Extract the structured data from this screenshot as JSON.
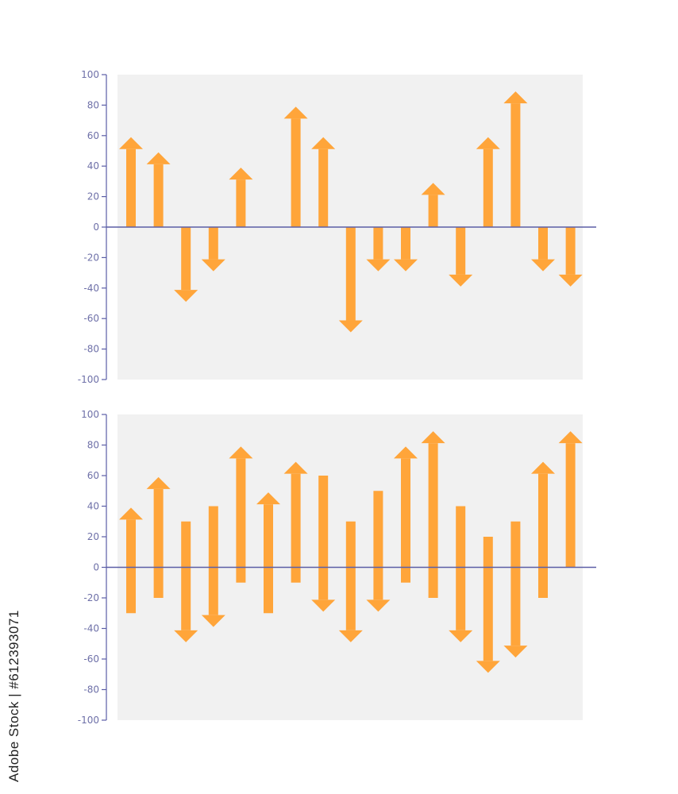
{
  "colors": {
    "arrow": "#FFA53A",
    "axis": "#5B5EA6",
    "tick_text": "#6E70A8",
    "plot_bg": "#F1F1F1",
    "page_bg": "#FFFFFF"
  },
  "chart_data": [
    {
      "type": "arrow",
      "title": "",
      "xlabel": "",
      "ylabel": "",
      "ylim": [
        -100,
        100
      ],
      "yticks": [
        100,
        80,
        60,
        40,
        20,
        0,
        -20,
        -40,
        -60,
        -80,
        -100
      ],
      "ytick_labels": [
        "100",
        "80",
        "60",
        "40",
        "20",
        "0",
        "-20",
        "-40",
        "-60",
        "-80",
        "-100"
      ],
      "grid": false,
      "legend": "none",
      "arrows": [
        {
          "from": 0,
          "to": 59
        },
        {
          "from": 0,
          "to": 49
        },
        {
          "from": 0,
          "to": -49
        },
        {
          "from": 0,
          "to": -29
        },
        {
          "from": 0,
          "to": 39
        },
        null,
        {
          "from": 0,
          "to": 79
        },
        {
          "from": 0,
          "to": 59
        },
        {
          "from": 0,
          "to": -69
        },
        {
          "from": 0,
          "to": -29
        },
        {
          "from": 0,
          "to": -29
        },
        {
          "from": 0,
          "to": 29
        },
        {
          "from": 0,
          "to": -39
        },
        {
          "from": 0,
          "to": 59
        },
        {
          "from": 0,
          "to": 89
        },
        {
          "from": 0,
          "to": -29
        },
        {
          "from": 0,
          "to": -39
        }
      ]
    },
    {
      "type": "arrow",
      "title": "",
      "xlabel": "",
      "ylabel": "",
      "ylim": [
        -100,
        100
      ],
      "yticks": [
        100,
        80,
        60,
        40,
        20,
        0,
        -20,
        -40,
        -60,
        -80,
        -100
      ],
      "ytick_labels": [
        "100",
        "80",
        "60",
        "40",
        "20",
        "0",
        "-20",
        "-40",
        "-60",
        "-80",
        "-100"
      ],
      "grid": false,
      "legend": "none",
      "arrows": [
        {
          "from": -30,
          "to": 39
        },
        {
          "from": -20,
          "to": 59
        },
        {
          "from": 30,
          "to": -49
        },
        {
          "from": 40,
          "to": -39
        },
        {
          "from": -10,
          "to": 79
        },
        {
          "from": -30,
          "to": 49
        },
        {
          "from": -10,
          "to": 69
        },
        {
          "from": 60,
          "to": -29
        },
        {
          "from": 30,
          "to": -49
        },
        {
          "from": 50,
          "to": -29
        },
        {
          "from": -10,
          "to": 79
        },
        {
          "from": -20,
          "to": 89
        },
        {
          "from": 40,
          "to": -49
        },
        {
          "from": 20,
          "to": -69
        },
        {
          "from": 30,
          "to": -59
        },
        {
          "from": -20,
          "to": 69
        },
        {
          "from": 0,
          "to": 89
        }
      ]
    }
  ],
  "watermark": {
    "side_text": "Adobe Stock | #612393071"
  }
}
